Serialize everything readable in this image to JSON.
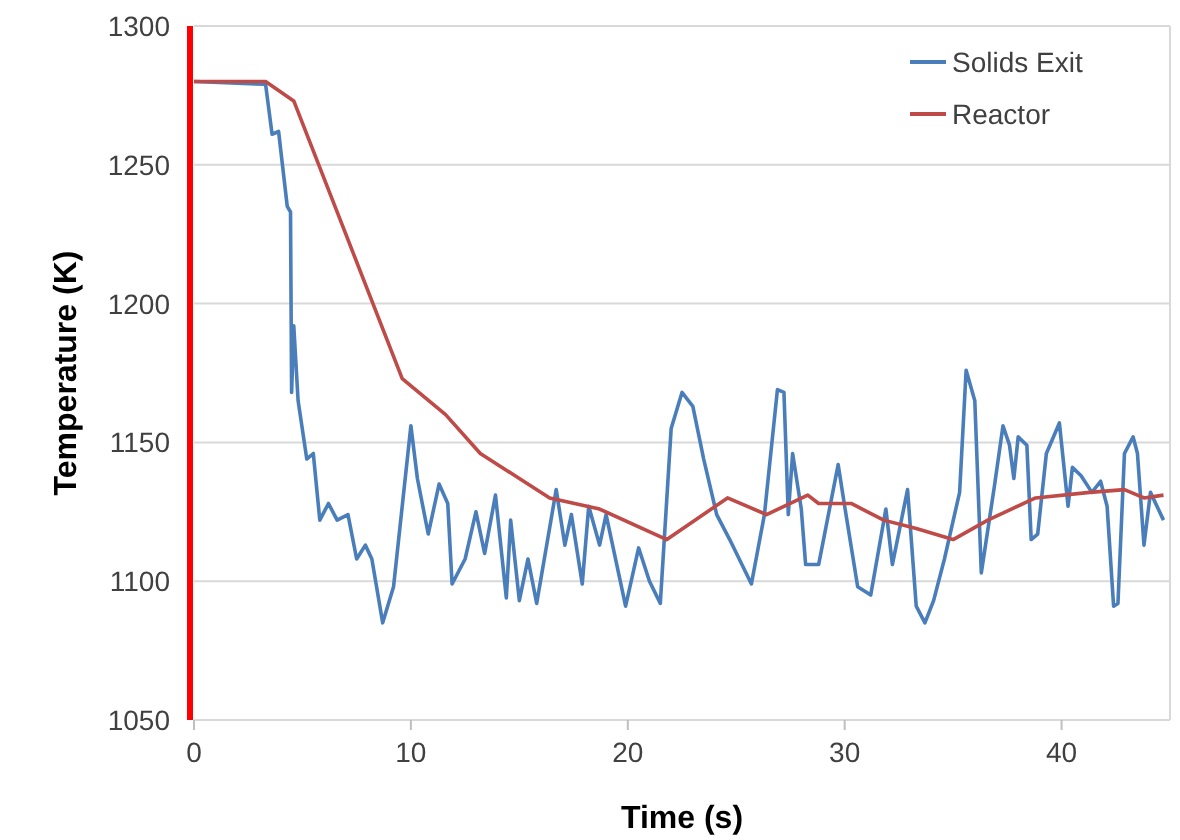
{
  "chart_data": {
    "type": "line",
    "xlabel": "Time (s)",
    "ylabel": "Temperature (K)",
    "xlim": [
      0,
      45
    ],
    "xticks": [
      0,
      10,
      20,
      30,
      40
    ],
    "ylim": [
      1050,
      1300
    ],
    "yticks": [
      1050,
      1100,
      1150,
      1200,
      1250,
      1300
    ],
    "grid": "y",
    "legend": "top right",
    "series": [
      {
        "name": "Solids Exit",
        "color": "#4a7ebb",
        "x": [
          0,
          3.3,
          3.6,
          3.9,
          4.3,
          4.45,
          4.5,
          4.6,
          4.8,
          5.2,
          5.5,
          5.8,
          6.2,
          6.6,
          7.1,
          7.5,
          7.9,
          8.2,
          8.7,
          9.2,
          10.0,
          10.3,
          10.8,
          11.3,
          11.7,
          11.9,
          12.5,
          13.0,
          13.4,
          13.9,
          14.4,
          14.6,
          15.0,
          15.4,
          15.8,
          16.7,
          17.1,
          17.4,
          17.9,
          18.2,
          18.7,
          19.0,
          19.9,
          20.5,
          21.0,
          21.5,
          22.0,
          22.5,
          23.0,
          23.5,
          24.1,
          24.7,
          25.7,
          26.3,
          26.9,
          27.2,
          27.4,
          27.6,
          28.0,
          28.2,
          28.8,
          29.7,
          30.0,
          30.6,
          31.2,
          31.9,
          32.2,
          32.9,
          33.3,
          33.7,
          34.1,
          34.6,
          35.3,
          35.6,
          36.0,
          36.3,
          36.9,
          37.3,
          37.6,
          37.8,
          38.0,
          38.4,
          38.6,
          38.9,
          39.3,
          39.9,
          40.3,
          40.5,
          40.9,
          41.4,
          41.8,
          42.1,
          42.4,
          42.6,
          42.9,
          43.3,
          43.5,
          43.8,
          44.1,
          44.7
        ],
        "values": [
          1280,
          1279,
          1261,
          1262,
          1235,
          1233,
          1168,
          1192,
          1165,
          1144,
          1146,
          1122,
          1128,
          1122,
          1124,
          1108,
          1113,
          1108,
          1085,
          1098,
          1156,
          1137,
          1117,
          1135,
          1128,
          1099,
          1108,
          1125,
          1110,
          1131,
          1094,
          1122,
          1093,
          1108,
          1092,
          1133,
          1113,
          1124,
          1099,
          1127,
          1113,
          1124,
          1091,
          1112,
          1100,
          1092,
          1155,
          1168,
          1163,
          1144,
          1124,
          1115,
          1099,
          1124,
          1169,
          1168,
          1124,
          1146,
          1126,
          1106,
          1106,
          1142,
          1127,
          1098,
          1095,
          1126,
          1106,
          1133,
          1091,
          1085,
          1093,
          1108,
          1132,
          1176,
          1165,
          1103,
          1134,
          1156,
          1149,
          1137,
          1152,
          1149,
          1115,
          1117,
          1146,
          1157,
          1127,
          1141,
          1138,
          1132,
          1136,
          1127,
          1091,
          1092,
          1146,
          1152,
          1146,
          1113,
          1132,
          1122
        ]
      },
      {
        "name": "Reactor",
        "color": "#be4b48",
        "x": [
          0,
          3.3,
          4.6,
          7.0,
          9.6,
          11.6,
          13.2,
          15.0,
          16.4,
          18.7,
          21.8,
          24.6,
          26.4,
          28.3,
          28.8,
          30.3,
          31.8,
          33.3,
          35.0,
          36.6,
          38.8,
          41.3,
          42.9,
          43.8,
          44.7
        ],
        "values": [
          1280,
          1280,
          1273,
          1225,
          1173,
          1160,
          1146,
          1137,
          1130,
          1126,
          1115,
          1130,
          1124,
          1131,
          1128,
          1128,
          1122,
          1119,
          1115,
          1122,
          1130,
          1132,
          1133,
          1130,
          1131
        ]
      }
    ]
  }
}
